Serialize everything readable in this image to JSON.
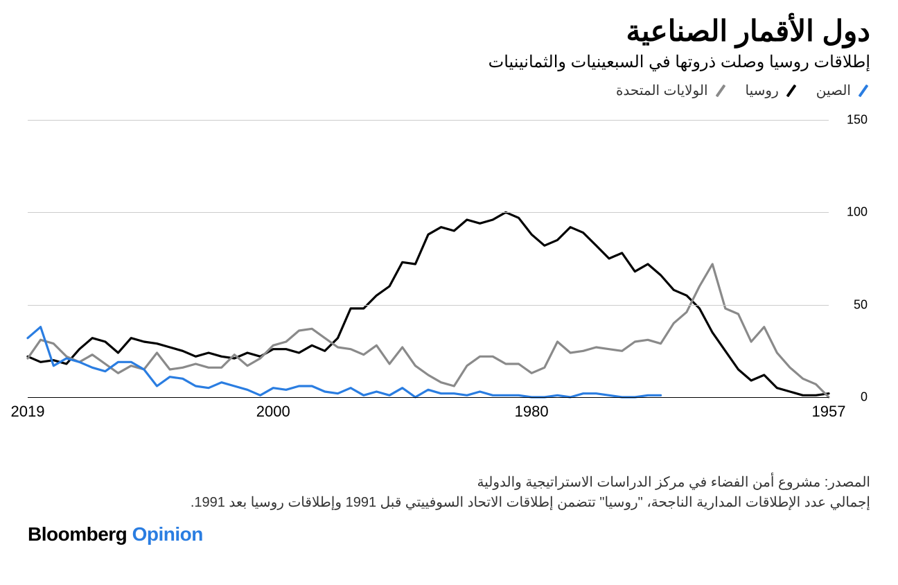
{
  "title": "دول الأقمار الصناعية",
  "subtitle": "إطلاقات روسيا وصلت ذروتها في السبعينيات والثمانينيات",
  "legend": [
    {
      "label": "الصين",
      "color": "#2a7de1"
    },
    {
      "label": "روسيا",
      "color": "#000000"
    },
    {
      "label": "الولايات المتحدة",
      "color": "#8a8a8a"
    }
  ],
  "chart": {
    "type": "line",
    "x_range": [
      1957,
      2019
    ],
    "y_range": [
      0,
      150
    ],
    "y_ticks": [
      0,
      50,
      100,
      150
    ],
    "x_ticks": [
      1957,
      1980,
      2000,
      2019
    ],
    "line_width": 3.2,
    "background_color": "#ffffff",
    "grid_color": "#cccccc",
    "zero_line_color": "#000000",
    "text_color": "#000000",
    "axis_fontsize": 20,
    "series": [
      {
        "name": "russia",
        "color": "#000000",
        "points": [
          [
            1957,
            2
          ],
          [
            1958,
            1
          ],
          [
            1959,
            1
          ],
          [
            1960,
            3
          ],
          [
            1961,
            5
          ],
          [
            1962,
            12
          ],
          [
            1963,
            9
          ],
          [
            1964,
            15
          ],
          [
            1965,
            25
          ],
          [
            1966,
            35
          ],
          [
            1967,
            48
          ],
          [
            1968,
            55
          ],
          [
            1969,
            58
          ],
          [
            1970,
            66
          ],
          [
            1971,
            72
          ],
          [
            1972,
            68
          ],
          [
            1973,
            78
          ],
          [
            1974,
            75
          ],
          [
            1975,
            82
          ],
          [
            1976,
            89
          ],
          [
            1977,
            92
          ],
          [
            1978,
            85
          ],
          [
            1979,
            82
          ],
          [
            1980,
            88
          ],
          [
            1981,
            97
          ],
          [
            1982,
            100
          ],
          [
            1983,
            96
          ],
          [
            1984,
            94
          ],
          [
            1985,
            96
          ],
          [
            1986,
            90
          ],
          [
            1987,
            92
          ],
          [
            1988,
            88
          ],
          [
            1989,
            72
          ],
          [
            1990,
            73
          ],
          [
            1991,
            60
          ],
          [
            1992,
            55
          ],
          [
            1993,
            48
          ],
          [
            1994,
            48
          ],
          [
            1995,
            32
          ],
          [
            1996,
            25
          ],
          [
            1997,
            28
          ],
          [
            1998,
            24
          ],
          [
            1999,
            26
          ],
          [
            2000,
            26
          ],
          [
            2001,
            22
          ],
          [
            2002,
            24
          ],
          [
            2003,
            21
          ],
          [
            2004,
            22
          ],
          [
            2005,
            24
          ],
          [
            2006,
            22
          ],
          [
            2007,
            25
          ],
          [
            2008,
            27
          ],
          [
            2009,
            29
          ],
          [
            2010,
            30
          ],
          [
            2011,
            32
          ],
          [
            2012,
            24
          ],
          [
            2013,
            30
          ],
          [
            2014,
            32
          ],
          [
            2015,
            26
          ],
          [
            2016,
            18
          ],
          [
            2017,
            20
          ],
          [
            2018,
            19
          ],
          [
            2019,
            22
          ]
        ]
      },
      {
        "name": "united-states",
        "color": "#8a8a8a",
        "points": [
          [
            1957,
            0
          ],
          [
            1958,
            7
          ],
          [
            1959,
            10
          ],
          [
            1960,
            16
          ],
          [
            1961,
            24
          ],
          [
            1962,
            38
          ],
          [
            1963,
            30
          ],
          [
            1964,
            45
          ],
          [
            1965,
            48
          ],
          [
            1966,
            72
          ],
          [
            1967,
            60
          ],
          [
            1968,
            46
          ],
          [
            1969,
            40
          ],
          [
            1970,
            29
          ],
          [
            1971,
            31
          ],
          [
            1972,
            30
          ],
          [
            1973,
            25
          ],
          [
            1974,
            26
          ],
          [
            1975,
            27
          ],
          [
            1976,
            25
          ],
          [
            1977,
            24
          ],
          [
            1978,
            30
          ],
          [
            1979,
            16
          ],
          [
            1980,
            13
          ],
          [
            1981,
            18
          ],
          [
            1982,
            18
          ],
          [
            1983,
            22
          ],
          [
            1984,
            22
          ],
          [
            1985,
            17
          ],
          [
            1986,
            6
          ],
          [
            1987,
            8
          ],
          [
            1988,
            12
          ],
          [
            1989,
            17
          ],
          [
            1990,
            27
          ],
          [
            1991,
            18
          ],
          [
            1992,
            28
          ],
          [
            1993,
            23
          ],
          [
            1994,
            26
          ],
          [
            1995,
            27
          ],
          [
            1996,
            32
          ],
          [
            1997,
            37
          ],
          [
            1998,
            36
          ],
          [
            1999,
            30
          ],
          [
            2000,
            28
          ],
          [
            2001,
            21
          ],
          [
            2002,
            17
          ],
          [
            2003,
            23
          ],
          [
            2004,
            16
          ],
          [
            2005,
            16
          ],
          [
            2006,
            18
          ],
          [
            2007,
            16
          ],
          [
            2008,
            15
          ],
          [
            2009,
            24
          ],
          [
            2010,
            15
          ],
          [
            2011,
            17
          ],
          [
            2012,
            13
          ],
          [
            2013,
            18
          ],
          [
            2014,
            23
          ],
          [
            2015,
            19
          ],
          [
            2016,
            22
          ],
          [
            2017,
            29
          ],
          [
            2018,
            31
          ],
          [
            2019,
            21
          ]
        ]
      },
      {
        "name": "china",
        "color": "#2a7de1",
        "points": [
          [
            1970,
            1
          ],
          [
            1971,
            1
          ],
          [
            1972,
            0
          ],
          [
            1973,
            0
          ],
          [
            1974,
            1
          ],
          [
            1975,
            2
          ],
          [
            1976,
            2
          ],
          [
            1977,
            0
          ],
          [
            1978,
            1
          ],
          [
            1979,
            0
          ],
          [
            1980,
            0
          ],
          [
            1981,
            1
          ],
          [
            1982,
            1
          ],
          [
            1983,
            1
          ],
          [
            1984,
            3
          ],
          [
            1985,
            1
          ],
          [
            1986,
            2
          ],
          [
            1987,
            2
          ],
          [
            1988,
            4
          ],
          [
            1989,
            0
          ],
          [
            1990,
            5
          ],
          [
            1991,
            1
          ],
          [
            1992,
            3
          ],
          [
            1993,
            1
          ],
          [
            1994,
            5
          ],
          [
            1995,
            2
          ],
          [
            1996,
            3
          ],
          [
            1997,
            6
          ],
          [
            1998,
            6
          ],
          [
            1999,
            4
          ],
          [
            2000,
            5
          ],
          [
            2001,
            1
          ],
          [
            2002,
            4
          ],
          [
            2003,
            6
          ],
          [
            2004,
            8
          ],
          [
            2005,
            5
          ],
          [
            2006,
            6
          ],
          [
            2007,
            10
          ],
          [
            2008,
            11
          ],
          [
            2009,
            6
          ],
          [
            2010,
            15
          ],
          [
            2011,
            19
          ],
          [
            2012,
            19
          ],
          [
            2013,
            14
          ],
          [
            2014,
            16
          ],
          [
            2015,
            19
          ],
          [
            2016,
            21
          ],
          [
            2017,
            17
          ],
          [
            2018,
            38
          ],
          [
            2019,
            32
          ]
        ]
      }
    ]
  },
  "footer": {
    "line1": "المصدر: مشروع أمن الفضاء في مركز الدراسات الاستراتيجية والدولية",
    "line2": "إجمالي عدد الإطلاقات المدارية الناجحة، \"روسيا\" تتضمن إطلاقات الاتحاد السوفييتي قبل 1991 وإطلاقات روسيا بعد 1991."
  },
  "brand": {
    "part1": "Bloomberg",
    "part2": "Opinion"
  }
}
